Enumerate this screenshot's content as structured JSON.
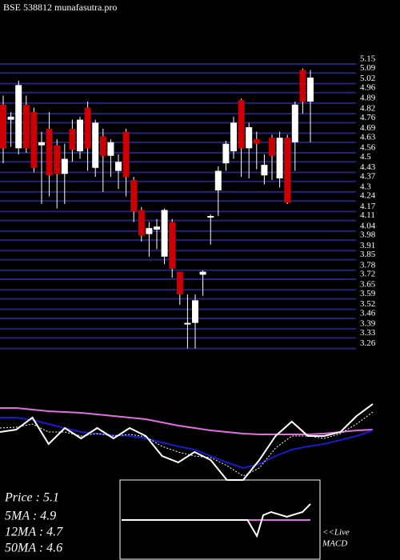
{
  "chart_data": [
    {
      "type": "candlestick",
      "title": "BSE 538812 munafasutra.pro",
      "open": [
        4.88,
        4.78,
        4.59,
        4.88,
        4.83,
        4.61,
        4.72,
        4.61,
        4.42,
        4.72,
        4.57,
        4.86,
        4.46,
        4.67,
        4.54,
        4.44,
        4.7,
        4.38,
        4.18,
        4.02,
        4.05,
        3.87,
        4.1,
        3.77,
        3.42,
        3.43,
        3.75,
        4.13,
        4.31,
        4.49,
        4.57,
        4.91,
        4.59,
        4.65,
        4.41,
        4.66,
        4.39,
        4.66,
        4.63,
        5.11,
        4.9
      ],
      "high": [
        4.94,
        4.83,
        5.04,
        4.94,
        4.86,
        4.7,
        4.83,
        4.65,
        4.62,
        4.78,
        4.8,
        4.9,
        4.78,
        4.72,
        4.65,
        4.55,
        4.72,
        4.4,
        4.2,
        4.1,
        4.12,
        4.19,
        4.12,
        3.77,
        3.62,
        3.62,
        3.78,
        4.15,
        4.47,
        4.64,
        4.8,
        4.92,
        4.76,
        4.7,
        4.55,
        4.68,
        4.7,
        4.68,
        4.9,
        5.12,
        5.11
      ],
      "low": [
        4.49,
        4.6,
        4.55,
        4.56,
        4.43,
        4.22,
        4.27,
        4.19,
        4.22,
        4.5,
        4.52,
        4.44,
        4.4,
        4.3,
        4.4,
        4.32,
        4.27,
        4.1,
        3.97,
        3.87,
        3.92,
        3.82,
        3.73,
        3.55,
        3.26,
        3.26,
        3.61,
        3.95,
        4.14,
        4.44,
        4.52,
        4.4,
        4.39,
        4.45,
        4.35,
        4.38,
        4.33,
        4.22,
        4.44,
        4.82,
        4.63
      ],
      "close": [
        4.59,
        4.8,
        5.01,
        4.59,
        4.46,
        4.63,
        4.41,
        4.42,
        4.52,
        4.58,
        4.78,
        4.59,
        4.76,
        4.54,
        4.63,
        4.5,
        4.4,
        4.17,
        4.01,
        4.06,
        4.07,
        4.18,
        3.79,
        3.62,
        3.43,
        3.58,
        3.77,
        4.14,
        4.44,
        4.62,
        4.76,
        4.59,
        4.73,
        4.62,
        4.48,
        4.54,
        4.66,
        4.23,
        4.88,
        4.9,
        5.06
      ],
      "up_color": "#ffffff",
      "down_color": "#cc0000",
      "grid_color": "#23237a",
      "ylim": [
        3.21,
        5.15
      ],
      "yticks": [
        5.15,
        5.09,
        5.02,
        4.96,
        4.89,
        4.82,
        4.76,
        4.69,
        4.63,
        4.56,
        4.5,
        4.43,
        4.37,
        4.3,
        4.24,
        4.17,
        4.11,
        4.04,
        3.98,
        3.91,
        3.85,
        3.78,
        3.72,
        3.65,
        3.59,
        3.52,
        3.46,
        3.39,
        3.33,
        3.26
      ],
      "grid": true
    },
    {
      "type": "line",
      "x": [
        0,
        20,
        40,
        60,
        80,
        100,
        120,
        140,
        160,
        180,
        200,
        220,
        240,
        260,
        280,
        300,
        320,
        340,
        360,
        380,
        400,
        420,
        440,
        460
      ],
      "ylim": [
        0,
        105
      ],
      "series": [
        {
          "color": "#e070e0",
          "values": [
            90,
            90,
            88,
            86,
            85,
            84,
            82,
            80,
            78,
            76,
            72,
            68,
            65,
            62,
            60,
            58,
            57,
            57,
            57,
            57,
            58,
            60,
            62,
            63
          ]
        },
        {
          "color": "#1a1acc",
          "values": [
            78,
            78,
            75,
            70,
            65,
            60,
            58,
            56,
            55,
            52,
            47,
            42,
            38,
            30,
            22,
            15,
            20,
            30,
            38,
            42,
            45,
            50,
            55,
            62
          ]
        },
        {
          "color": "#ffffff",
          "dashed": true,
          "values": [
            65,
            66,
            70,
            60,
            60,
            55,
            58,
            55,
            57,
            54,
            42,
            35,
            30,
            28,
            18,
            5,
            15,
            40,
            55,
            55,
            52,
            58,
            70,
            85
          ]
        },
        {
          "color": "#ffffff",
          "values": [
            60,
            63,
            78,
            45,
            65,
            52,
            65,
            52,
            65,
            55,
            30,
            22,
            35,
            25,
            0,
            0,
            25,
            55,
            73,
            55,
            55,
            60,
            80,
            95
          ]
        }
      ],
      "annotations": [
        "Price   : 5.1",
        "5MA : 4.9",
        "12MA : 4.7",
        "50MA : 4.6"
      ]
    },
    {
      "type": "line",
      "x": [
        0,
        20,
        40,
        60,
        80,
        100,
        120,
        140,
        160,
        172,
        180,
        190,
        210,
        230,
        240
      ],
      "ylim": [
        -20,
        20
      ],
      "series": [
        {
          "color": "#e070e0",
          "values": [
            0,
            0,
            0,
            0,
            0,
            0,
            0,
            0,
            0,
            0,
            0,
            0,
            0,
            0,
            0
          ]
        },
        {
          "color": "#ffffff",
          "values": [
            0,
            0,
            0,
            0,
            0,
            0,
            0,
            0,
            0,
            -10,
            3,
            5,
            2,
            5,
            10
          ]
        }
      ],
      "annotations": [
        "<<Live",
        "MACD"
      ]
    }
  ]
}
